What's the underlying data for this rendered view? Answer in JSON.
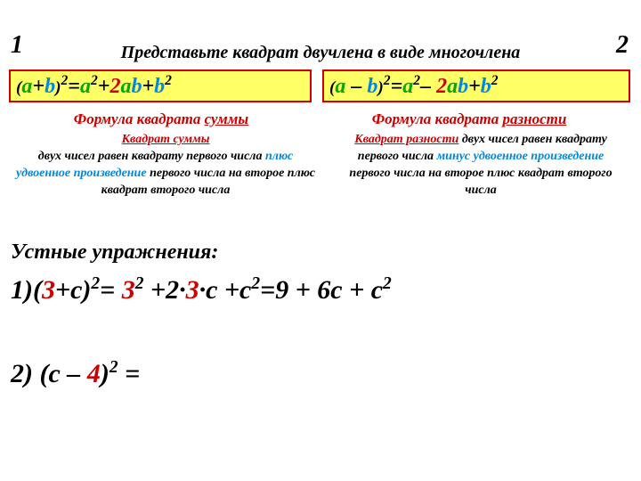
{
  "corners": {
    "one": "1",
    "two": "2"
  },
  "header": "Представьте квадрат двучлена в виде многочлена",
  "formula_left": {
    "paren_open": "(",
    "a1": "a",
    "plus1": "+",
    "b1": "b",
    "paren_close": ")",
    "sq1": "2",
    "eq": "=",
    "a2": "a",
    "sq2": "2",
    "plus2": "+",
    "two": "2",
    "a3": "a",
    "b3": "b",
    "plus3": "+",
    "b2": "b",
    "sq3": "2"
  },
  "formula_right": {
    "paren_open": "(",
    "a1": "a",
    "minus1": " – ",
    "b1": "b",
    "paren_close": ")",
    "sq1": "2",
    "eq": "=",
    "a2": "a",
    "sq2": "2",
    "minus2": "– ",
    "two": "2",
    "a3": "a",
    "b3": "b",
    "plus3": "+",
    "b2": "b",
    "sq3": "2"
  },
  "title_left": {
    "t1": "Формула квадрата  ",
    "t2": "суммы"
  },
  "title_right": {
    "t1": "Формула квадрата ",
    "t2": "разности"
  },
  "desc_left": {
    "l1": "Квадрат  суммы ",
    "l2": "двух чисел равен  квадрату первого числа ",
    "l3": "плюс удвоенное произведение",
    "l4": " первого числа на второе  плюс квадрат второго числа"
  },
  "desc_right": {
    "l1": "Квадрат  разности",
    "l2": " двух чисел равен  квадрату первого числа ",
    "l3": "минус  удвоенное произведение",
    "l4": " первого числа на второе  плюс квадрат второго числа"
  },
  "exercises_title": "Устные упражнения:",
  "ex1": {
    "num": "1)",
    "po": "(",
    "three1": "3",
    "mid1": "+c)",
    "sq1": "2",
    "eq1": "= ",
    "three2": "3",
    "sq2": "2",
    "mid2": " +2·",
    "three3": "3",
    "mid3": "·c +c",
    "sq3": "2",
    "res": "=9 + 6c + c",
    "sq4": "2"
  },
  "ex2": {
    "num": "2)",
    "po": " (c – ",
    "four": "4",
    "pc": ")",
    "sq": "2",
    "eq": " ="
  },
  "colors": {
    "green": "#00aa00",
    "blue": "#0088dd",
    "red": "#cc0000",
    "yellow": "#ffff66",
    "black": "#000000",
    "white": "#ffffff"
  }
}
